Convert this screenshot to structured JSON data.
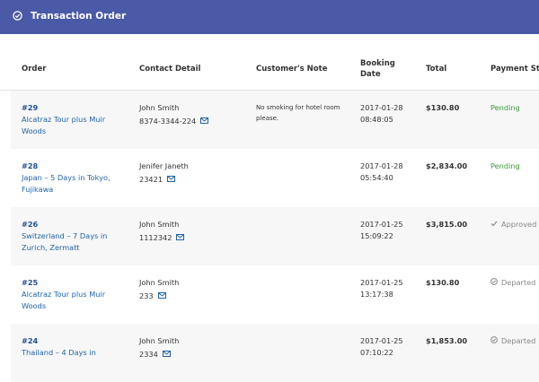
{
  "header": {
    "title": "Transaction Order"
  },
  "table": {
    "columns": [
      "Order",
      "Contact Detail",
      "Customer's Note",
      "Booking Date",
      "Total",
      "Payment Status"
    ],
    "rows": [
      {
        "id": "#29",
        "tour": "Alcatraz Tour plus Muir Woods",
        "name": "John Smith",
        "phone": "8374-3344-224",
        "note": "No smoking for hotel room please.",
        "date": "2017-01-28",
        "time": "08:48:05",
        "total": "$130.80",
        "status": "Pending",
        "status_color": "#3a9b3a"
      },
      {
        "id": "#28",
        "tour": "Japan – 5 Days in Tokyo, Fujikawa",
        "name": "Jenifer Janeth",
        "phone": "23421",
        "date": "2017-01-28",
        "time": "05:54:40",
        "total": "$2,834.00",
        "status": "Pending",
        "status_color": "#3a9b3a"
      },
      {
        "id": "#26",
        "tour": "Switzerland – 7 Days in Zurich, Zermatt",
        "name": "John Smith",
        "phone": "1112342",
        "date": "2017-01-25",
        "time": "15:09:22",
        "total": "$3,815.00",
        "status": "Approved",
        "status_color": "#888888",
        "status_icon": "check"
      },
      {
        "id": "#25",
        "tour": "Alcatraz Tour plus Muir Woods",
        "name": "John Smith",
        "phone": "233",
        "date": "2017-01-25",
        "time": "13:17:38",
        "total": "$130.80",
        "status": "Departed",
        "status_color": "#888888",
        "status_icon": "circle"
      },
      {
        "id": "#24",
        "tour": "Thailand – 4 Days in",
        "name": "John Smith",
        "phone": "2334",
        "date": "2017-01-25",
        "time": "07:10:22",
        "total": "$1,853.00",
        "status": "Departed",
        "status_color": "#888888",
        "status_icon": "circle"
      }
    ]
  }
}
